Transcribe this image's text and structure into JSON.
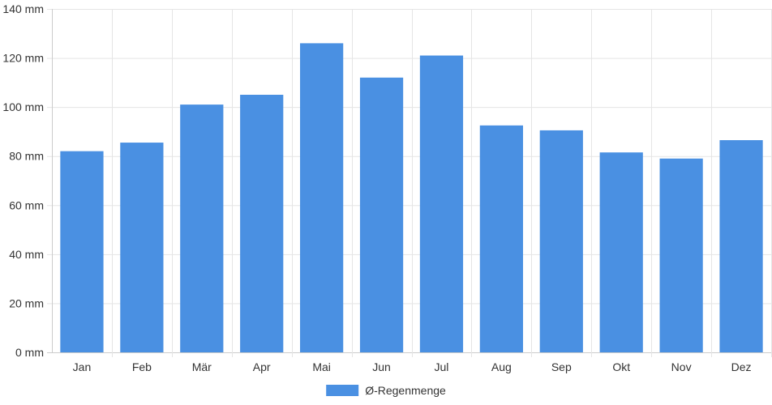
{
  "chart_data": {
    "type": "bar",
    "categories": [
      "Jan",
      "Feb",
      "Mär",
      "Apr",
      "Mai",
      "Jun",
      "Jul",
      "Aug",
      "Sep",
      "Okt",
      "Nov",
      "Dez"
    ],
    "series": [
      {
        "name": "Ø-Regenmenge",
        "values": [
          82,
          85.5,
          101,
          105,
          126,
          112,
          121,
          92.5,
          90.5,
          81.5,
          79,
          86.5
        ]
      }
    ],
    "unit": "mm",
    "ylim": [
      0,
      140
    ],
    "yticks": [
      0,
      20,
      40,
      60,
      80,
      100,
      120,
      140
    ],
    "ytick_labels": [
      "0 mm",
      "20 mm",
      "40 mm",
      "60 mm",
      "80 mm",
      "100 mm",
      "120 mm",
      "140 mm"
    ],
    "grid": true,
    "legend_position": "bottom-center",
    "bar_color": "#4a90e2",
    "title": "",
    "xlabel": "",
    "ylabel": ""
  }
}
